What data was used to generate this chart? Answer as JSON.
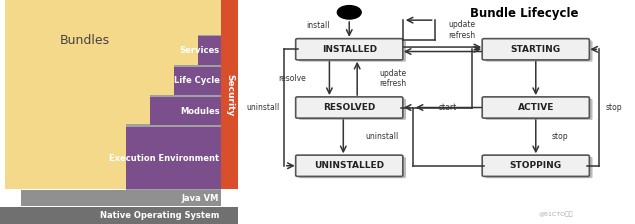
{
  "left_bg_color": "#F5D98B",
  "purple_color": "#7B4F8C",
  "red_color": "#D94F2B",
  "gray_step": "#A0A0A0",
  "gray_jvm": "#909090",
  "gray_nos": "#707070",
  "white": "#FFFFFF",
  "black": "#000000",
  "text_dark": "#444444",
  "bundles_label": "Bundles",
  "security_label": "Security",
  "title": "Bundle Lifecycle",
  "watermark": "@51CTO博客",
  "box_fill": "#F0F0F0",
  "box_edge": "#555555",
  "arrow_color": "#333333"
}
